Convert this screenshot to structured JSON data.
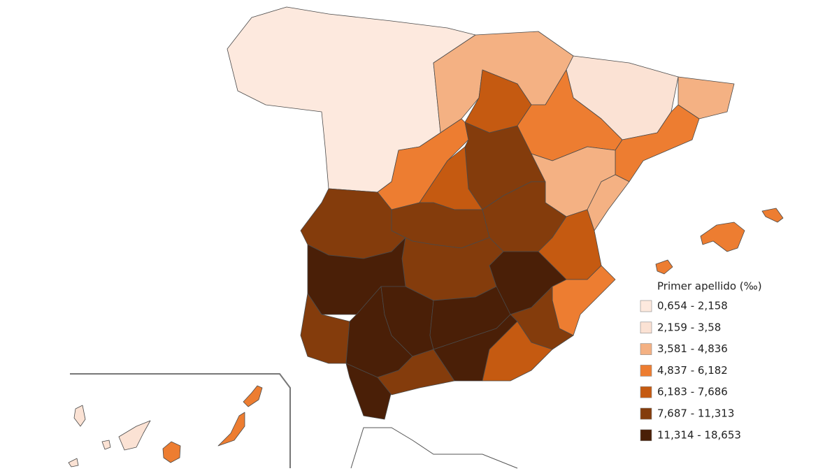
{
  "legend": {
    "title": "Primer apellido (‰)",
    "items": [
      {
        "label": "0,654 - 2,158",
        "color": "#fde9de"
      },
      {
        "label": "2,159 - 3,58",
        "color": "#fbe2d4"
      },
      {
        "label": "3,581 - 4,836",
        "color": "#f4b183"
      },
      {
        "label": "4,837 - 6,182",
        "color": "#ed7d31"
      },
      {
        "label": "6,183 - 7,686",
        "color": "#c55a11"
      },
      {
        "label": "7,687 - 11,313",
        "color": "#843c0c"
      },
      {
        "label": "11,314 - 18,653",
        "color": "#4a1f07"
      }
    ]
  }
}
